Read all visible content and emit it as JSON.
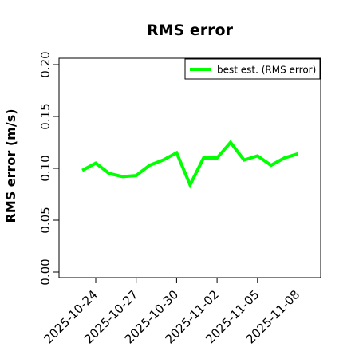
{
  "chart_data": {
    "type": "line",
    "title": "RMS error",
    "xlabel": "",
    "ylabel": "RMS error (m/s)",
    "ylim": [
      0.0,
      0.21
    ],
    "y_ticks": [
      0.0,
      0.05,
      0.1,
      0.15,
      0.2
    ],
    "y_tick_labels": [
      "0.00",
      "0.05",
      "0.10",
      "0.15",
      "0.20"
    ],
    "x_range": [
      "2025-10-22",
      "2025-11-09"
    ],
    "x_ticks": [
      "2025-10-24",
      "2025-10-27",
      "2025-10-30",
      "2025-11-02",
      "2025-11-05",
      "2025-11-08"
    ],
    "highlighted_tick": "2025-10-30",
    "highlight_color": "#228B22",
    "grid": false,
    "legend_position": "top-right",
    "series": [
      {
        "name": "best est. (RMS error)",
        "color": "#00FF00",
        "points": [
          {
            "x": "2025-10-23",
            "y": 0.098
          },
          {
            "x": "2025-10-24",
            "y": 0.105
          },
          {
            "x": "2025-10-25",
            "y": 0.095
          },
          {
            "x": "2025-10-26",
            "y": 0.092
          },
          {
            "x": "2025-10-27",
            "y": 0.093
          },
          {
            "x": "2025-10-28",
            "y": 0.103
          },
          {
            "x": "2025-10-29",
            "y": 0.108
          },
          {
            "x": "2025-10-30",
            "y": 0.115
          },
          {
            "x": "2025-10-31",
            "y": 0.084
          },
          {
            "x": "2025-11-01",
            "y": 0.11
          },
          {
            "x": "2025-11-02",
            "y": 0.11
          },
          {
            "x": "2025-11-03",
            "y": 0.125
          },
          {
            "x": "2025-11-04",
            "y": 0.108
          },
          {
            "x": "2025-11-05",
            "y": 0.112
          },
          {
            "x": "2025-11-06",
            "y": 0.103
          },
          {
            "x": "2025-11-07",
            "y": 0.11
          },
          {
            "x": "2025-11-08",
            "y": 0.114
          }
        ]
      }
    ]
  }
}
